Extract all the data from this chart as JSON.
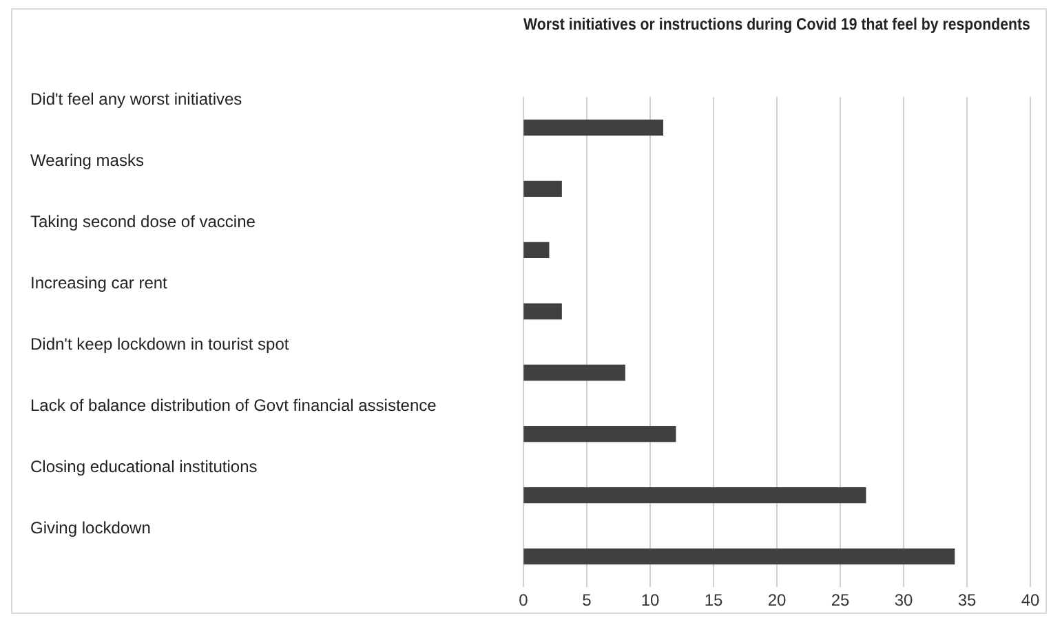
{
  "chart_data": {
    "type": "bar",
    "orientation": "horizontal",
    "title": "Worst initiatives or instructions during Covid 19 that feel by respondents",
    "categories": [
      "Did't feel any worst initiatives",
      "Wearing masks",
      "Taking second dose of vaccine",
      "Increasing car rent",
      "Didn't keep lockdown in tourist spot",
      "Lack of balance distribution of Govt financial assistence",
      "Closing educational institutions",
      "Giving lockdown"
    ],
    "values": [
      11,
      3,
      2,
      3,
      8,
      12,
      27,
      34
    ],
    "color": "#404040",
    "xlim": [
      0,
      40
    ],
    "xticks": [
      0,
      5,
      10,
      15,
      20,
      25,
      30,
      35,
      40
    ],
    "grid": "x",
    "legend": false
  }
}
